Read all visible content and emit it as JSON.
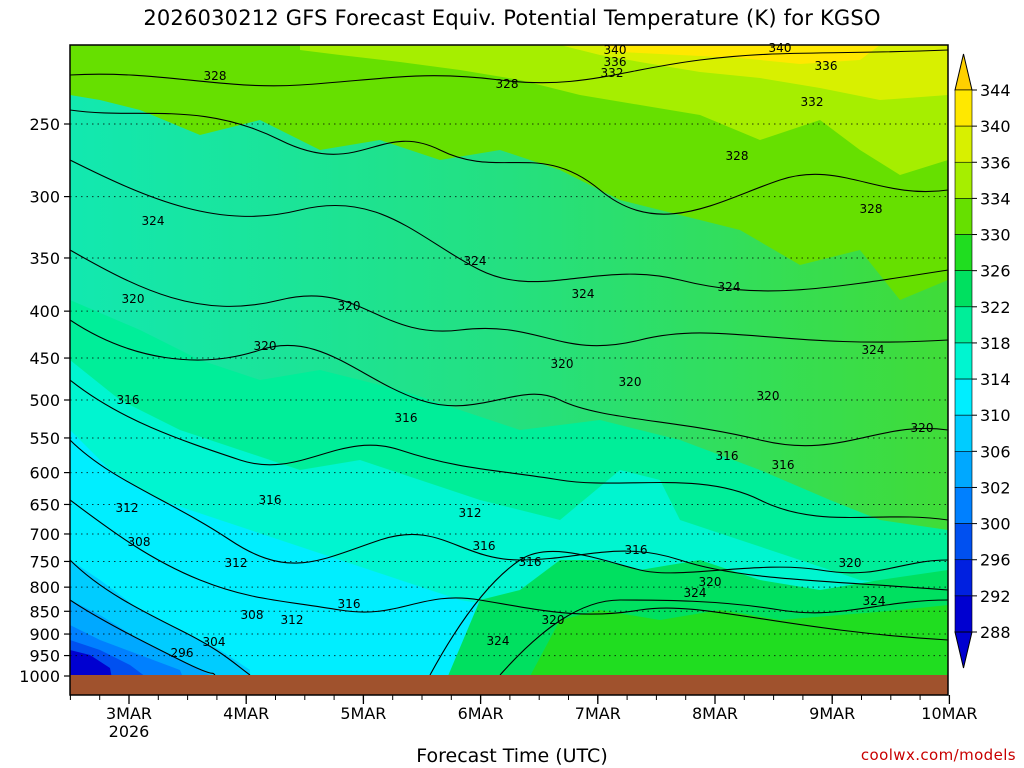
{
  "chart_data": {
    "type": "heatmap",
    "title": "2026030212 GFS Forecast Equiv. Potential Temperature (K) for KGSO",
    "xlabel": "Forecast Time (UTC)",
    "ylabel": "",
    "x_ticks": [
      "3MAR",
      "4MAR",
      "5MAR",
      "6MAR",
      "7MAR",
      "8MAR",
      "9MAR",
      "10MAR"
    ],
    "x_year": "2026",
    "x_range_days": [
      2.5,
      10.0
    ],
    "y_ticks": [
      250,
      300,
      350,
      400,
      450,
      500,
      550,
      600,
      650,
      700,
      750,
      800,
      850,
      900,
      950,
      1000
    ],
    "y_range": [
      200,
      1000
    ],
    "y_scale": "log",
    "colorbar_levels": [
      288,
      292,
      296,
      300,
      302,
      306,
      310,
      314,
      318,
      322,
      326,
      330,
      334,
      336,
      340,
      344
    ],
    "colorbar_colors": [
      "#0000d0",
      "#0020e0",
      "#0050f0",
      "#0080ff",
      "#00a8ff",
      "#00ccff",
      "#00eeff",
      "#00f5d0",
      "#00ee99",
      "#00e060",
      "#20dd20",
      "#66e000",
      "#a6ee00",
      "#d8f000",
      "#ffe800",
      "#ffd000"
    ],
    "contour_labels": [
      "340",
      "336",
      "332",
      "328",
      "324",
      "320",
      "316",
      "312",
      "308",
      "304",
      "296"
    ],
    "ground_color": "#a0522d",
    "grid": "dotted"
  },
  "credit": "coolwx.com/models"
}
